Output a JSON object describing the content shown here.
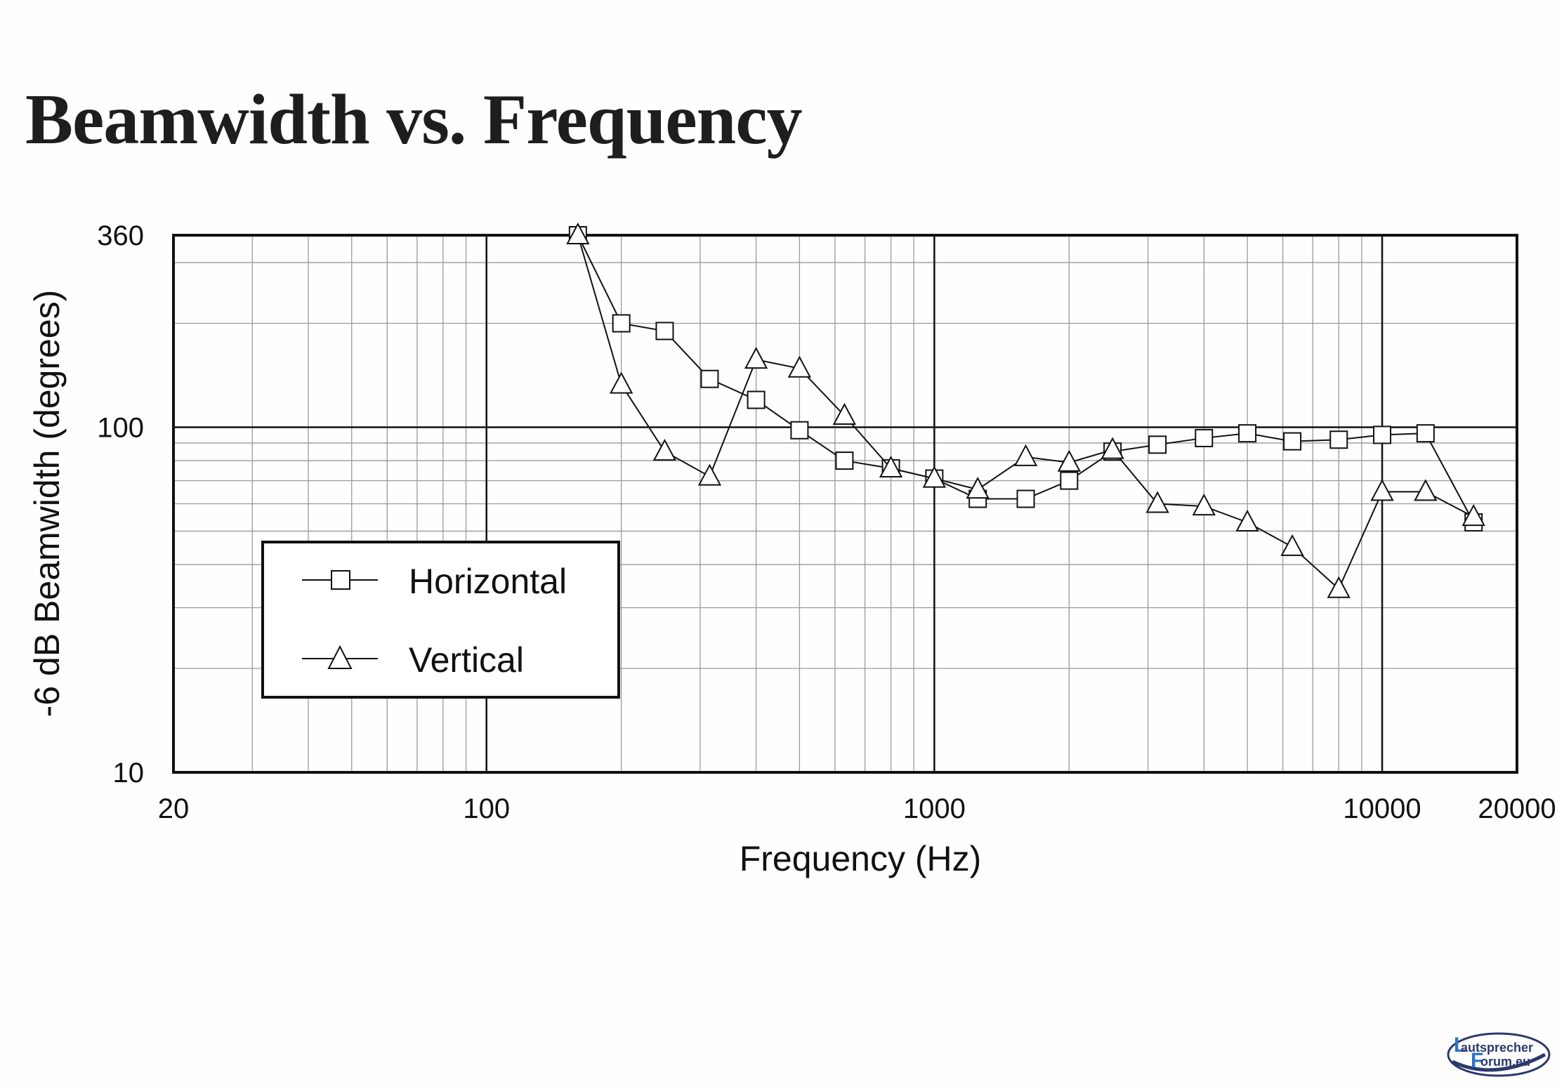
{
  "chart_data": {
    "type": "line",
    "title": "Beamwidth vs. Frequency",
    "xlabel": "Frequency (Hz)",
    "ylabel": "-6 dB Beamwidth (degrees)",
    "xscale": "log",
    "yscale": "log",
    "xlim": [
      20,
      20000
    ],
    "ylim": [
      10,
      360
    ],
    "xticks": [
      20,
      100,
      1000,
      10000,
      20000
    ],
    "xtick_labels": [
      "20",
      "100",
      "1000",
      "10000",
      "20000"
    ],
    "yticks": [
      10,
      100,
      360
    ],
    "ytick_labels": [
      "10",
      "100",
      "360"
    ],
    "grid": true,
    "legend_position": "lower-left",
    "series": [
      {
        "name": "Horizontal",
        "marker": "square",
        "x": [
          160,
          200,
          250,
          315,
          400,
          500,
          630,
          800,
          1000,
          1250,
          1600,
          2000,
          2500,
          3150,
          4000,
          5000,
          6300,
          8000,
          10000,
          12500,
          16000
        ],
        "y": [
          360,
          200,
          190,
          138,
          120,
          98,
          80,
          76,
          71,
          62,
          62,
          70,
          85,
          89,
          93,
          96,
          91,
          92,
          95,
          96,
          53
        ]
      },
      {
        "name": "Vertical",
        "marker": "triangle",
        "x": [
          160,
          200,
          250,
          315,
          400,
          500,
          630,
          800,
          1000,
          1250,
          1600,
          2000,
          2500,
          3150,
          4000,
          5000,
          6300,
          8000,
          10000,
          12500,
          16000
        ],
        "y": [
          360,
          133,
          85,
          72,
          157,
          148,
          108,
          76,
          71,
          66,
          82,
          79,
          86,
          60,
          59,
          53,
          45,
          34,
          65,
          65,
          55
        ]
      }
    ]
  },
  "watermark": {
    "line1": "autsprecher",
    "line2": "orum.eu",
    "initial1": "L",
    "initial2": "F"
  }
}
